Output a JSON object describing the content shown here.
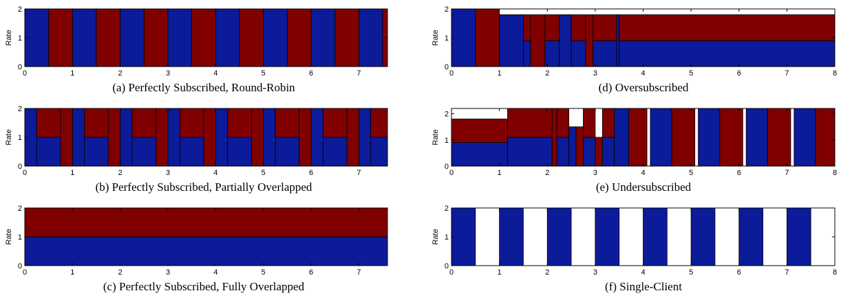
{
  "colors": {
    "blue": "#0c1b9a",
    "red": "#800000",
    "background": "#ffffff",
    "axis": "#000000"
  },
  "chart_data": [
    {
      "id": "a",
      "type": "area",
      "caption": "(a) Perfectly Subscribed, Round-Robin",
      "ylabel": "Rate",
      "xlim": [
        0,
        7.6
      ],
      "ylim": [
        0,
        2
      ],
      "xticks": [
        0,
        1,
        2,
        3,
        4,
        5,
        6,
        7
      ],
      "yticks": [
        0,
        1,
        2
      ],
      "segments": [
        {
          "color": "blue",
          "x0": 0.0,
          "x1": 0.5,
          "y0": 0,
          "y1": 2
        },
        {
          "color": "red",
          "x0": 0.5,
          "x1": 1.0,
          "y0": 0,
          "y1": 2
        },
        {
          "color": "blue",
          "x0": 1.0,
          "x1": 1.5,
          "y0": 0,
          "y1": 2
        },
        {
          "color": "red",
          "x0": 1.5,
          "x1": 2.0,
          "y0": 0,
          "y1": 2
        },
        {
          "color": "blue",
          "x0": 2.0,
          "x1": 2.5,
          "y0": 0,
          "y1": 2
        },
        {
          "color": "red",
          "x0": 2.5,
          "x1": 3.0,
          "y0": 0,
          "y1": 2
        },
        {
          "color": "blue",
          "x0": 3.0,
          "x1": 3.5,
          "y0": 0,
          "y1": 2
        },
        {
          "color": "red",
          "x0": 3.5,
          "x1": 4.0,
          "y0": 0,
          "y1": 2
        },
        {
          "color": "blue",
          "x0": 4.0,
          "x1": 4.5,
          "y0": 0,
          "y1": 2
        },
        {
          "color": "red",
          "x0": 4.5,
          "x1": 5.0,
          "y0": 0,
          "y1": 2
        },
        {
          "color": "blue",
          "x0": 5.0,
          "x1": 5.5,
          "y0": 0,
          "y1": 2
        },
        {
          "color": "red",
          "x0": 5.5,
          "x1": 6.0,
          "y0": 0,
          "y1": 2
        },
        {
          "color": "blue",
          "x0": 6.0,
          "x1": 6.5,
          "y0": 0,
          "y1": 2
        },
        {
          "color": "red",
          "x0": 6.5,
          "x1": 7.0,
          "y0": 0,
          "y1": 2
        },
        {
          "color": "blue",
          "x0": 7.0,
          "x1": 7.5,
          "y0": 0,
          "y1": 2
        },
        {
          "color": "red",
          "x0": 7.5,
          "x1": 7.6,
          "y0": 0,
          "y1": 2
        }
      ]
    },
    {
      "id": "b",
      "type": "area",
      "caption": "(b) Perfectly Subscribed, Partially Overlapped",
      "ylabel": "Rate",
      "xlim": [
        0,
        7.6
      ],
      "ylim": [
        0,
        2
      ],
      "xticks": [
        0,
        1,
        2,
        3,
        4,
        5,
        6,
        7
      ],
      "yticks": [
        0,
        1,
        2
      ],
      "segments": [
        {
          "color": "blue",
          "x0": 0.0,
          "x1": 0.25,
          "y0": 0,
          "y1": 2
        },
        {
          "color": "blue",
          "x0": 0.25,
          "x1": 0.75,
          "y0": 0,
          "y1": 1
        },
        {
          "color": "red",
          "x0": 0.25,
          "x1": 0.75,
          "y0": 1,
          "y1": 2
        },
        {
          "color": "red",
          "x0": 0.75,
          "x1": 1.0,
          "y0": 0,
          "y1": 2
        },
        {
          "color": "blue",
          "x0": 1.0,
          "x1": 1.25,
          "y0": 0,
          "y1": 2
        },
        {
          "color": "blue",
          "x0": 1.25,
          "x1": 1.75,
          "y0": 0,
          "y1": 1
        },
        {
          "color": "red",
          "x0": 1.25,
          "x1": 1.75,
          "y0": 1,
          "y1": 2
        },
        {
          "color": "red",
          "x0": 1.75,
          "x1": 2.0,
          "y0": 0,
          "y1": 2
        },
        {
          "color": "blue",
          "x0": 2.0,
          "x1": 2.25,
          "y0": 0,
          "y1": 2
        },
        {
          "color": "blue",
          "x0": 2.25,
          "x1": 2.75,
          "y0": 0,
          "y1": 1
        },
        {
          "color": "red",
          "x0": 2.25,
          "x1": 2.75,
          "y0": 1,
          "y1": 2
        },
        {
          "color": "red",
          "x0": 2.75,
          "x1": 3.0,
          "y0": 0,
          "y1": 2
        },
        {
          "color": "blue",
          "x0": 3.0,
          "x1": 3.25,
          "y0": 0,
          "y1": 2
        },
        {
          "color": "blue",
          "x0": 3.25,
          "x1": 3.75,
          "y0": 0,
          "y1": 1
        },
        {
          "color": "red",
          "x0": 3.25,
          "x1": 3.75,
          "y0": 1,
          "y1": 2
        },
        {
          "color": "red",
          "x0": 3.75,
          "x1": 4.0,
          "y0": 0,
          "y1": 2
        },
        {
          "color": "blue",
          "x0": 4.0,
          "x1": 4.25,
          "y0": 0,
          "y1": 2
        },
        {
          "color": "blue",
          "x0": 4.25,
          "x1": 4.75,
          "y0": 0,
          "y1": 1
        },
        {
          "color": "red",
          "x0": 4.25,
          "x1": 4.75,
          "y0": 1,
          "y1": 2
        },
        {
          "color": "red",
          "x0": 4.75,
          "x1": 5.0,
          "y0": 0,
          "y1": 2
        },
        {
          "color": "blue",
          "x0": 5.0,
          "x1": 5.25,
          "y0": 0,
          "y1": 2
        },
        {
          "color": "blue",
          "x0": 5.25,
          "x1": 5.75,
          "y0": 0,
          "y1": 1
        },
        {
          "color": "red",
          "x0": 5.25,
          "x1": 5.75,
          "y0": 1,
          "y1": 2
        },
        {
          "color": "red",
          "x0": 5.75,
          "x1": 6.0,
          "y0": 0,
          "y1": 2
        },
        {
          "color": "blue",
          "x0": 6.0,
          "x1": 6.25,
          "y0": 0,
          "y1": 2
        },
        {
          "color": "blue",
          "x0": 6.25,
          "x1": 6.75,
          "y0": 0,
          "y1": 1
        },
        {
          "color": "red",
          "x0": 6.25,
          "x1": 6.75,
          "y0": 1,
          "y1": 2
        },
        {
          "color": "red",
          "x0": 6.75,
          "x1": 7.0,
          "y0": 0,
          "y1": 2
        },
        {
          "color": "blue",
          "x0": 7.0,
          "x1": 7.25,
          "y0": 0,
          "y1": 2
        },
        {
          "color": "blue",
          "x0": 7.25,
          "x1": 7.6,
          "y0": 0,
          "y1": 1
        },
        {
          "color": "red",
          "x0": 7.25,
          "x1": 7.6,
          "y0": 1,
          "y1": 2
        }
      ]
    },
    {
      "id": "c",
      "type": "area",
      "caption": "(c) Perfectly Subscribed, Fully Overlapped",
      "ylabel": "Rate",
      "xlim": [
        0,
        7.6
      ],
      "ylim": [
        0,
        2
      ],
      "xticks": [
        0,
        1,
        2,
        3,
        4,
        5,
        6,
        7
      ],
      "yticks": [
        0,
        1,
        2
      ],
      "segments": [
        {
          "color": "blue",
          "x0": 0.0,
          "x1": 7.6,
          "y0": 0,
          "y1": 1
        },
        {
          "color": "red",
          "x0": 0.0,
          "x1": 7.6,
          "y0": 1,
          "y1": 2
        }
      ]
    },
    {
      "id": "d",
      "type": "area",
      "caption": "(d) Oversubscribed",
      "ylabel": "Rate",
      "xlim": [
        0,
        8
      ],
      "ylim": [
        0,
        2
      ],
      "xticks": [
        0,
        1,
        2,
        3,
        4,
        5,
        6,
        7,
        8
      ],
      "yticks": [
        0,
        1,
        2
      ],
      "segments": [
        {
          "color": "blue",
          "x0": 0.0,
          "x1": 0.5,
          "y0": 0,
          "y1": 2
        },
        {
          "color": "red",
          "x0": 0.5,
          "x1": 1.0,
          "y0": 0,
          "y1": 2
        },
        {
          "color": "blue",
          "x0": 1.0,
          "x1": 1.5,
          "y0": 0,
          "y1": 1.8
        },
        {
          "color": "blue",
          "x0": 1.5,
          "x1": 1.65,
          "y0": 0,
          "y1": 0.9
        },
        {
          "color": "red",
          "x0": 1.5,
          "x1": 1.65,
          "y0": 0.9,
          "y1": 1.8
        },
        {
          "color": "red",
          "x0": 1.65,
          "x1": 1.95,
          "y0": 0,
          "y1": 1.8
        },
        {
          "color": "blue",
          "x0": 1.95,
          "x1": 2.25,
          "y0": 0,
          "y1": 0.9
        },
        {
          "color": "red",
          "x0": 1.95,
          "x1": 2.25,
          "y0": 0.9,
          "y1": 1.8
        },
        {
          "color": "blue",
          "x0": 2.25,
          "x1": 2.5,
          "y0": 0,
          "y1": 1.8
        },
        {
          "color": "blue",
          "x0": 2.5,
          "x1": 2.8,
          "y0": 0,
          "y1": 0.9
        },
        {
          "color": "red",
          "x0": 2.5,
          "x1": 2.8,
          "y0": 0.9,
          "y1": 1.8
        },
        {
          "color": "red",
          "x0": 2.8,
          "x1": 2.95,
          "y0": 0,
          "y1": 1.8
        },
        {
          "color": "blue",
          "x0": 2.95,
          "x1": 3.45,
          "y0": 0,
          "y1": 0.9
        },
        {
          "color": "red",
          "x0": 2.95,
          "x1": 3.45,
          "y0": 0.9,
          "y1": 1.8
        },
        {
          "color": "blue",
          "x0": 3.45,
          "x1": 3.5,
          "y0": 0,
          "y1": 1.8
        },
        {
          "color": "blue",
          "x0": 3.5,
          "x1": 8.0,
          "y0": 0,
          "y1": 0.9
        },
        {
          "color": "red",
          "x0": 3.5,
          "x1": 8.0,
          "y0": 0.9,
          "y1": 1.8
        }
      ]
    },
    {
      "id": "e",
      "type": "area",
      "caption": "(e) Undersubscribed",
      "ylabel": "Rate",
      "xlim": [
        0,
        8
      ],
      "ylim": [
        0,
        2.2
      ],
      "xticks": [
        0,
        1,
        2,
        3,
        4,
        5,
        6,
        7,
        8
      ],
      "yticks": [
        0,
        1,
        2
      ],
      "segments": [
        {
          "color": "blue",
          "x0": 0.0,
          "x1": 1.17,
          "y0": 0,
          "y1": 0.9
        },
        {
          "color": "red",
          "x0": 0.0,
          "x1": 1.17,
          "y0": 0.9,
          "y1": 1.8
        },
        {
          "color": "blue",
          "x0": 1.17,
          "x1": 2.1,
          "y0": 0,
          "y1": 1.1
        },
        {
          "color": "red",
          "x0": 1.17,
          "x1": 2.1,
          "y0": 1.1,
          "y1": 2.2
        },
        {
          "color": "red",
          "x0": 2.1,
          "x1": 2.2,
          "y0": 0,
          "y1": 2.2
        },
        {
          "color": "blue",
          "x0": 2.2,
          "x1": 2.45,
          "y0": 0,
          "y1": 1.1
        },
        {
          "color": "red",
          "x0": 2.2,
          "x1": 2.45,
          "y0": 1.1,
          "y1": 2.2
        },
        {
          "color": "blue",
          "x0": 2.45,
          "x1": 2.6,
          "y0": 0,
          "y1": 1.5
        },
        {
          "color": "red",
          "x0": 2.6,
          "x1": 2.75,
          "y0": 0,
          "y1": 1.5
        },
        {
          "color": "blue",
          "x0": 2.75,
          "x1": 3.0,
          "y0": 0,
          "y1": 1.1
        },
        {
          "color": "red",
          "x0": 2.75,
          "x1": 3.0,
          "y0": 1.1,
          "y1": 2.2
        },
        {
          "color": "red",
          "x0": 3.0,
          "x1": 3.15,
          "y0": 0,
          "y1": 1.1
        },
        {
          "color": "blue",
          "x0": 3.15,
          "x1": 3.4,
          "y0": 0,
          "y1": 1.1
        },
        {
          "color": "red",
          "x0": 3.15,
          "x1": 3.4,
          "y0": 1.1,
          "y1": 2.2
        },
        {
          "color": "blue",
          "x0": 3.4,
          "x1": 3.7,
          "y0": 0,
          "y1": 2.2
        },
        {
          "color": "red",
          "x0": 3.7,
          "x1": 4.08,
          "y0": 0,
          "y1": 2.2
        },
        {
          "color": "blue",
          "x0": 4.15,
          "x1": 4.6,
          "y0": 0,
          "y1": 2.2
        },
        {
          "color": "red",
          "x0": 4.6,
          "x1": 5.08,
          "y0": 0,
          "y1": 2.2
        },
        {
          "color": "blue",
          "x0": 5.15,
          "x1": 5.6,
          "y0": 0,
          "y1": 2.2
        },
        {
          "color": "red",
          "x0": 5.6,
          "x1": 6.08,
          "y0": 0,
          "y1": 2.2
        },
        {
          "color": "blue",
          "x0": 6.15,
          "x1": 6.6,
          "y0": 0,
          "y1": 2.2
        },
        {
          "color": "red",
          "x0": 6.6,
          "x1": 7.08,
          "y0": 0,
          "y1": 2.2
        },
        {
          "color": "blue",
          "x0": 7.15,
          "x1": 7.6,
          "y0": 0,
          "y1": 2.2
        },
        {
          "color": "red",
          "x0": 7.6,
          "x1": 8.0,
          "y0": 0,
          "y1": 2.2
        }
      ]
    },
    {
      "id": "f",
      "type": "area",
      "caption": "(f) Single-Client",
      "ylabel": "Rate",
      "xlim": [
        0,
        8
      ],
      "ylim": [
        0,
        2
      ],
      "xticks": [
        0,
        1,
        2,
        3,
        4,
        5,
        6,
        7,
        8
      ],
      "yticks": [
        0,
        1,
        2
      ],
      "segments": [
        {
          "color": "blue",
          "x0": 0.0,
          "x1": 0.5,
          "y0": 0,
          "y1": 2
        },
        {
          "color": "blue",
          "x0": 1.0,
          "x1": 1.5,
          "y0": 0,
          "y1": 2
        },
        {
          "color": "blue",
          "x0": 2.0,
          "x1": 2.5,
          "y0": 0,
          "y1": 2
        },
        {
          "color": "blue",
          "x0": 3.0,
          "x1": 3.5,
          "y0": 0,
          "y1": 2
        },
        {
          "color": "blue",
          "x0": 4.0,
          "x1": 4.5,
          "y0": 0,
          "y1": 2
        },
        {
          "color": "blue",
          "x0": 5.0,
          "x1": 5.5,
          "y0": 0,
          "y1": 2
        },
        {
          "color": "blue",
          "x0": 6.0,
          "x1": 6.5,
          "y0": 0,
          "y1": 2
        },
        {
          "color": "blue",
          "x0": 7.0,
          "x1": 7.5,
          "y0": 0,
          "y1": 2
        }
      ]
    }
  ]
}
